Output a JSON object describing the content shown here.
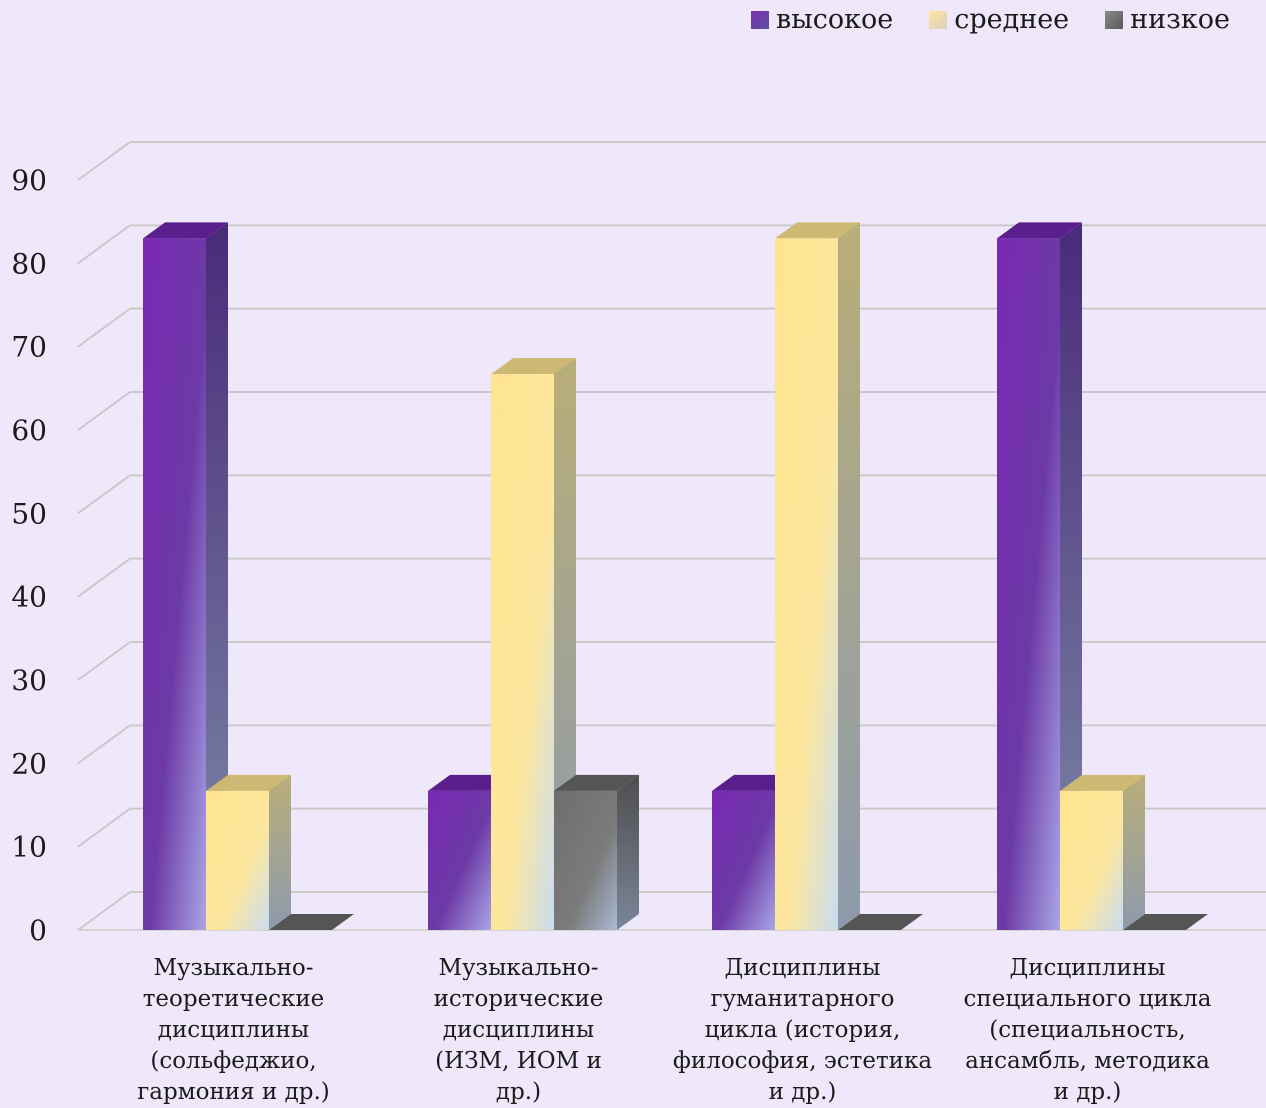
{
  "chart_data": {
    "type": "bar",
    "title": "",
    "xlabel": "",
    "ylabel": "",
    "ylim": [
      0,
      90
    ],
    "yticks": [
      "0",
      "10",
      "20",
      "30",
      "40",
      "50",
      "60",
      "70",
      "80",
      "90"
    ],
    "grid": true,
    "legend_position": "top-right",
    "categories": [
      [
        "Музыкально-",
        "теоретические",
        "дисциплины",
        "(сольфеджио,",
        "гармония и др.)"
      ],
      [
        "Музыкально-",
        "исторические",
        "дисциплины",
        "(ИЗМ, ИОМ и",
        "др.)"
      ],
      [
        "Дисциплины",
        "гуманитарного",
        "цикла (история,",
        "философия, эстетика",
        "и др.)"
      ],
      [
        "Дисциплины",
        "специального цикла",
        "(специальность,",
        "ансамбль, методика",
        "и др.)"
      ]
    ],
    "series": [
      {
        "name": "высокое",
        "values": [
          83,
          16.7,
          16.7,
          83
        ],
        "color": "#7030a0"
      },
      {
        "name": "среднее",
        "values": [
          16.7,
          66.7,
          83,
          16.7
        ],
        "color": "#ffe699"
      },
      {
        "name": "низкое",
        "values": [
          0,
          16.7,
          0,
          0
        ],
        "color": "#7f7f7f"
      }
    ]
  }
}
